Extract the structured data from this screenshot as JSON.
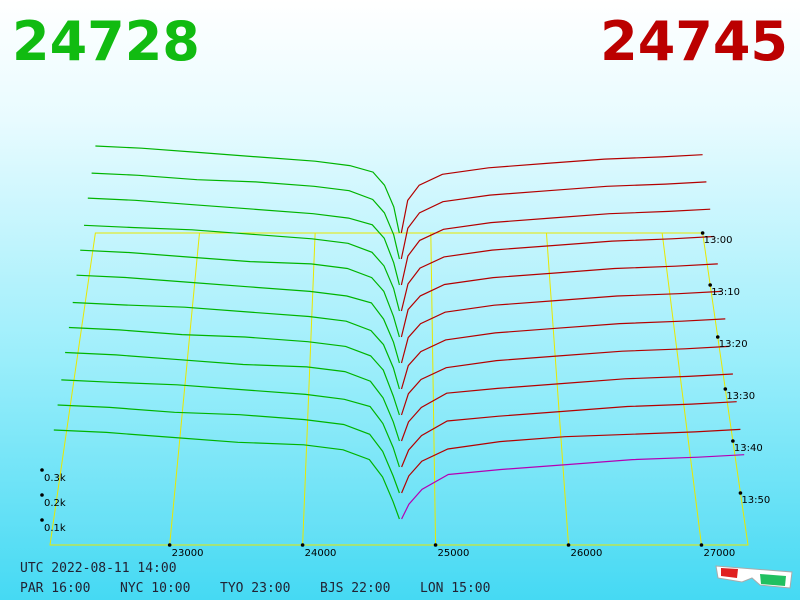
{
  "chart_data": {
    "type": "depth",
    "best_bid": 24728,
    "best_ask": 24745,
    "bid_text_color": "#11bb11",
    "ask_text_color": "#bb0000",
    "xlim": [
      22100,
      27350
    ],
    "xticks": [
      23000,
      24000,
      25000,
      26000,
      27000
    ],
    "tlim": [
      0,
      60
    ],
    "tticks": [
      {
        "value": 0,
        "label": "13:00"
      },
      {
        "value": 10,
        "label": "13:10"
      },
      {
        "value": 20,
        "label": "13:20"
      },
      {
        "value": 30,
        "label": "13:30"
      },
      {
        "value": 40,
        "label": "13:40"
      },
      {
        "value": 50,
        "label": "13:50"
      }
    ],
    "zlim": [
      0,
      0.4
    ],
    "zticks": [
      {
        "value": 0.1,
        "label": "0.1k"
      },
      {
        "value": 0.2,
        "label": "0.2k"
      },
      {
        "value": 0.3,
        "label": "0.3k"
      }
    ],
    "bid_prices": [
      24728,
      24680,
      24600,
      24500,
      24300,
      24000,
      23500,
      23000,
      22500,
      22100
    ],
    "ask_prices": [
      24745,
      24800,
      24900,
      25100,
      25500,
      26000,
      26500,
      27000,
      27350
    ],
    "series": [
      {
        "side": "bid",
        "t": 0,
        "color": "#00b400",
        "values": [
          0,
          0.12,
          0.22,
          0.28,
          0.31,
          0.33,
          0.35,
          0.37,
          0.39,
          0.4
        ]
      },
      {
        "side": "ask",
        "t": 0,
        "color": "#b40000",
        "values": [
          0,
          0.15,
          0.22,
          0.27,
          0.3,
          0.32,
          0.34,
          0.35,
          0.36
        ]
      },
      {
        "side": "bid",
        "t": 5,
        "color": "#00b400",
        "values": [
          0,
          0.11,
          0.21,
          0.27,
          0.31,
          0.33,
          0.35,
          0.36,
          0.38,
          0.39
        ]
      },
      {
        "side": "ask",
        "t": 5,
        "color": "#b40000",
        "values": [
          0,
          0.14,
          0.21,
          0.26,
          0.29,
          0.31,
          0.33,
          0.34,
          0.35
        ]
      },
      {
        "side": "bid",
        "t": 10,
        "color": "#00b400",
        "values": [
          0,
          0.1,
          0.21,
          0.27,
          0.3,
          0.32,
          0.34,
          0.36,
          0.38,
          0.39
        ]
      },
      {
        "side": "ask",
        "t": 10,
        "color": "#b40000",
        "values": [
          0,
          0.13,
          0.2,
          0.25,
          0.28,
          0.3,
          0.32,
          0.33,
          0.34
        ]
      },
      {
        "side": "bid",
        "t": 15,
        "color": "#00b400",
        "values": [
          0,
          0.1,
          0.2,
          0.26,
          0.3,
          0.32,
          0.34,
          0.36,
          0.37,
          0.38
        ]
      },
      {
        "side": "ask",
        "t": 15,
        "color": "#b40000",
        "values": [
          0,
          0.12,
          0.19,
          0.24,
          0.27,
          0.29,
          0.31,
          0.32,
          0.33
        ]
      },
      {
        "side": "bid",
        "t": 20,
        "color": "#00b400",
        "values": [
          0,
          0.09,
          0.2,
          0.26,
          0.3,
          0.32,
          0.33,
          0.35,
          0.37,
          0.38
        ]
      },
      {
        "side": "ask",
        "t": 20,
        "color": "#b40000",
        "values": [
          0,
          0.12,
          0.18,
          0.23,
          0.26,
          0.28,
          0.3,
          0.31,
          0.32
        ]
      },
      {
        "side": "bid",
        "t": 25,
        "color": "#00b400",
        "values": [
          0,
          0.09,
          0.19,
          0.26,
          0.29,
          0.31,
          0.33,
          0.35,
          0.37,
          0.38
        ]
      },
      {
        "side": "ask",
        "t": 25,
        "color": "#b40000",
        "values": [
          0,
          0.11,
          0.17,
          0.22,
          0.25,
          0.27,
          0.29,
          0.3,
          0.31
        ]
      },
      {
        "side": "bid",
        "t": 30,
        "color": "#00b400",
        "values": [
          0,
          0.09,
          0.19,
          0.25,
          0.29,
          0.31,
          0.33,
          0.35,
          0.36,
          0.37
        ]
      },
      {
        "side": "ask",
        "t": 30,
        "color": "#b40000",
        "values": [
          0,
          0.1,
          0.16,
          0.21,
          0.24,
          0.26,
          0.28,
          0.29,
          0.3
        ]
      },
      {
        "side": "bid",
        "t": 35,
        "color": "#00b400",
        "values": [
          0,
          0.08,
          0.19,
          0.25,
          0.29,
          0.31,
          0.33,
          0.34,
          0.36,
          0.37
        ]
      },
      {
        "side": "ask",
        "t": 35,
        "color": "#b40000",
        "values": [
          0,
          0.09,
          0.15,
          0.2,
          0.23,
          0.25,
          0.27,
          0.28,
          0.29
        ]
      },
      {
        "side": "bid",
        "t": 40,
        "color": "#00b400",
        "values": [
          0,
          0.08,
          0.18,
          0.25,
          0.29,
          0.31,
          0.32,
          0.34,
          0.36,
          0.37
        ]
      },
      {
        "side": "ask",
        "t": 40,
        "color": "#b40000",
        "values": [
          0,
          0.08,
          0.14,
          0.2,
          0.22,
          0.24,
          0.26,
          0.27,
          0.28
        ]
      },
      {
        "side": "bid",
        "t": 45,
        "color": "#00b400",
        "values": [
          0,
          0.08,
          0.18,
          0.25,
          0.28,
          0.3,
          0.32,
          0.34,
          0.35,
          0.36
        ]
      },
      {
        "side": "ask",
        "t": 45,
        "color": "#b40000",
        "values": [
          0,
          0.07,
          0.13,
          0.19,
          0.21,
          0.23,
          0.25,
          0.26,
          0.27
        ]
      },
      {
        "side": "bid",
        "t": 50,
        "color": "#00b400",
        "values": [
          0,
          0.07,
          0.17,
          0.24,
          0.28,
          0.3,
          0.32,
          0.33,
          0.35,
          0.36
        ]
      },
      {
        "side": "ask",
        "t": 50,
        "color": "#b40000",
        "values": [
          0,
          0.07,
          0.13,
          0.18,
          0.21,
          0.23,
          0.24,
          0.25,
          0.26
        ]
      },
      {
        "side": "bid",
        "t": 55,
        "color": "#00b400",
        "values": [
          0,
          0.07,
          0.17,
          0.24,
          0.28,
          0.3,
          0.31,
          0.33,
          0.35,
          0.36
        ]
      },
      {
        "side": "ask",
        "t": 55,
        "color": "#b400b4",
        "values": [
          0,
          0.06,
          0.12,
          0.18,
          0.2,
          0.22,
          0.24,
          0.25,
          0.26
        ]
      }
    ]
  },
  "footer": {
    "utc": "UTC 2022-08-11 14:00",
    "cities": [
      "PAR 16:00",
      "NYC 10:00",
      "TYO 23:00",
      "BJS 22:00",
      "LON 15:00"
    ]
  }
}
